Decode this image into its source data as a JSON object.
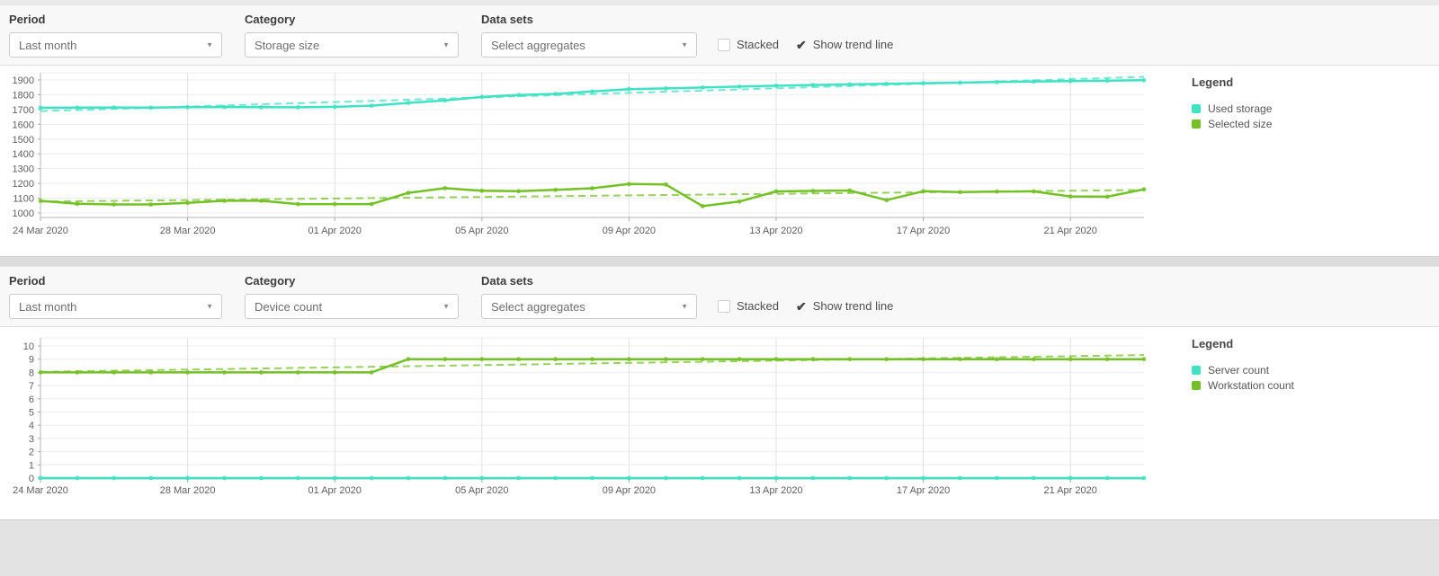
{
  "icons": {
    "caret_down": "▼",
    "check": "✔"
  },
  "panels": [
    {
      "toolbar": {
        "period_label": "Period",
        "period_value": "Last month",
        "category_label": "Category",
        "category_value": "Storage size",
        "datasets_label": "Data sets",
        "datasets_value": "Select aggregates",
        "stacked_label": "Stacked",
        "stacked_checked": false,
        "trendline_label": "Show trend line",
        "trendline_checked": true
      },
      "legend": {
        "title": "Legend",
        "items": [
          {
            "label": "Used storage",
            "color": "#3fe2c3"
          },
          {
            "label": "Selected size",
            "color": "#73c125"
          }
        ]
      }
    },
    {
      "toolbar": {
        "period_label": "Period",
        "period_value": "Last month",
        "category_label": "Category",
        "category_value": "Device count",
        "datasets_label": "Data sets",
        "datasets_value": "Select aggregates",
        "stacked_label": "Stacked",
        "stacked_checked": false,
        "trendline_label": "Show trend line",
        "trendline_checked": true
      },
      "legend": {
        "title": "Legend",
        "items": [
          {
            "label": "Server count",
            "color": "#3fe2c3"
          },
          {
            "label": "Workstation count",
            "color": "#73c125"
          }
        ]
      }
    }
  ],
  "chart_data": [
    {
      "type": "line",
      "title": "Storage size over last month",
      "x_start": "24 Mar 2020",
      "x_end": "23 Apr 2020",
      "x_step": "1 day",
      "n_points": 31,
      "x_tick_labels": [
        "24 Mar 2020",
        "28 Mar 2020",
        "01 Apr 2020",
        "05 Apr 2020",
        "09 Apr 2020",
        "13 Apr 2020",
        "17 Apr 2020",
        "21 Apr 2020"
      ],
      "x_tick_indices": [
        0,
        4,
        8,
        12,
        16,
        20,
        24,
        28
      ],
      "ylim": [
        1000,
        1900
      ],
      "y_ticks": [
        1000,
        1100,
        1200,
        1300,
        1400,
        1500,
        1600,
        1700,
        1800,
        1900
      ],
      "grid": true,
      "legend_position": "right",
      "trend_line": true,
      "series": [
        {
          "name": "Used storage",
          "color": "#3fe2c3",
          "values": [
            1712,
            1713,
            1714,
            1713,
            1716,
            1717,
            1716,
            1715,
            1718,
            1726,
            1745,
            1762,
            1785,
            1798,
            1806,
            1822,
            1838,
            1843,
            1849,
            1855,
            1861,
            1866,
            1870,
            1874,
            1878,
            1882,
            1886,
            1889,
            1892,
            1895,
            1898
          ]
        },
        {
          "name": "Selected size",
          "color": "#73c125",
          "values": [
            1082,
            1062,
            1058,
            1058,
            1068,
            1083,
            1083,
            1060,
            1060,
            1060,
            1136,
            1168,
            1150,
            1147,
            1156,
            1167,
            1196,
            1193,
            1046,
            1077,
            1146,
            1149,
            1152,
            1087,
            1147,
            1141,
            1145,
            1146,
            1112,
            1110,
            1160
          ]
        }
      ]
    },
    {
      "type": "line",
      "title": "Device count over last month",
      "x_start": "24 Mar 2020",
      "x_end": "23 Apr 2020",
      "x_step": "1 day",
      "n_points": 31,
      "x_tick_labels": [
        "24 Mar 2020",
        "28 Mar 2020",
        "01 Apr 2020",
        "05 Apr 2020",
        "09 Apr 2020",
        "13 Apr 2020",
        "17 Apr 2020",
        "21 Apr 2020"
      ],
      "x_tick_indices": [
        0,
        4,
        8,
        12,
        16,
        20,
        24,
        28
      ],
      "ylim": [
        0,
        10
      ],
      "y_ticks": [
        0,
        1,
        2,
        3,
        4,
        5,
        6,
        7,
        8,
        9,
        10
      ],
      "grid": true,
      "legend_position": "right",
      "trend_line": true,
      "series": [
        {
          "name": "Server count",
          "color": "#3fe2c3",
          "values": [
            0,
            0,
            0,
            0,
            0,
            0,
            0,
            0,
            0,
            0,
            0,
            0,
            0,
            0,
            0,
            0,
            0,
            0,
            0,
            0,
            0,
            0,
            0,
            0,
            0,
            0,
            0,
            0,
            0,
            0,
            0
          ]
        },
        {
          "name": "Workstation count",
          "color": "#73c125",
          "values": [
            8,
            8,
            8,
            8,
            8,
            8,
            8,
            8,
            8,
            8,
            9,
            9,
            9,
            9,
            9,
            9,
            9,
            9,
            9,
            9,
            9,
            9,
            9,
            9,
            9,
            9,
            9,
            9,
            9,
            9,
            9
          ]
        }
      ]
    }
  ]
}
